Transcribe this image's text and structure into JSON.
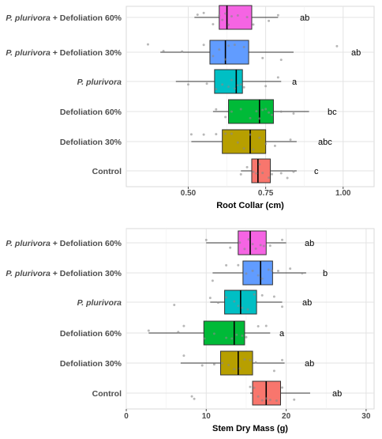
{
  "chart_data": [
    {
      "type": "boxplot",
      "orientation": "horizontal",
      "xlabel": "Root Collar (cm)",
      "xlim": [
        0.3,
        1.1
      ],
      "xticks": [
        0.5,
        0.75,
        1.0
      ],
      "xtick_labels": [
        "0.50",
        "0.75",
        "1.00"
      ],
      "grid": true,
      "legend": "none",
      "categories": [
        {
          "prefix": "P. plurivora",
          "suffix": " + Defoliation 60%",
          "color": "#F564E3",
          "min": 0.52,
          "q1": 0.6,
          "median": 0.625,
          "q3": 0.705,
          "max": 0.79,
          "letter": "ab",
          "points": [
            0.53,
            0.55,
            0.58,
            0.6,
            0.61,
            0.62,
            0.63,
            0.64,
            0.66,
            0.69,
            0.71,
            0.76,
            0.79
          ]
        },
        {
          "prefix": "P. plurivora",
          "suffix": " + Defoliation 30%",
          "color": "#619CFF",
          "min": 0.41,
          "q1": 0.57,
          "median": 0.62,
          "q3": 0.695,
          "max": 0.84,
          "letter": "ab",
          "points": [
            0.37,
            0.42,
            0.48,
            0.55,
            0.58,
            0.6,
            0.62,
            0.63,
            0.65,
            0.68,
            0.74,
            0.8,
            0.98
          ]
        },
        {
          "prefix": "P. plurivora",
          "suffix": "",
          "color": "#00BFC4",
          "min": 0.46,
          "q1": 0.585,
          "median": 0.655,
          "q3": 0.675,
          "max": 0.8,
          "letter": "a",
          "points": [
            0.5,
            0.56,
            0.59,
            0.61,
            0.63,
            0.64,
            0.65,
            0.66,
            0.67,
            0.68,
            0.75,
            0.79
          ]
        },
        {
          "prefix": "",
          "suffix": "Defoliation 60%",
          "color": "#00BA38",
          "min": 0.58,
          "q1": 0.63,
          "median": 0.73,
          "q3": 0.775,
          "max": 0.89,
          "letter": "bc",
          "points": [
            0.59,
            0.62,
            0.64,
            0.67,
            0.7,
            0.72,
            0.73,
            0.74,
            0.75,
            0.76,
            0.77,
            0.8,
            0.84
          ]
        },
        {
          "prefix": "",
          "suffix": "Defoliation 30%",
          "color": "#B79F00",
          "min": 0.51,
          "q1": 0.61,
          "median": 0.7,
          "q3": 0.75,
          "max": 0.85,
          "letter": "abc",
          "points": [
            0.51,
            0.55,
            0.59,
            0.62,
            0.64,
            0.66,
            0.68,
            0.7,
            0.71,
            0.73,
            0.75,
            0.78,
            0.83
          ]
        },
        {
          "prefix": "",
          "suffix": "Control",
          "color": "#F8766D",
          "min": 0.67,
          "q1": 0.705,
          "median": 0.725,
          "q3": 0.765,
          "max": 0.85,
          "letter": "c",
          "points": [
            0.67,
            0.69,
            0.71,
            0.72,
            0.73,
            0.74,
            0.76,
            0.77,
            0.8,
            0.82,
            0.84
          ]
        }
      ]
    },
    {
      "type": "boxplot",
      "orientation": "horizontal",
      "xlabel": "Stem Dry Mass (g)",
      "xlim": [
        0,
        31
      ],
      "xticks": [
        0,
        10,
        20,
        30
      ],
      "xtick_labels": [
        "0",
        "10",
        "20",
        "30"
      ],
      "grid": true,
      "legend": "none",
      "categories": [
        {
          "prefix": "P. plurivora",
          "suffix": " + Defoliation 60%",
          "color": "#F564E3",
          "min": 10.0,
          "q1": 14.0,
          "median": 15.5,
          "q3": 17.5,
          "max": 20.0,
          "letter": "ab",
          "points": [
            10.0,
            13.0,
            14.2,
            14.8,
            15.3,
            15.8,
            16.2,
            16.8,
            17.2,
            18.0,
            19.5
          ]
        },
        {
          "prefix": "P. plurivora",
          "suffix": " + Defoliation 30%",
          "color": "#619CFF",
          "min": 10.8,
          "q1": 14.6,
          "median": 16.8,
          "q3": 18.3,
          "max": 22.5,
          "letter": "b",
          "points": [
            10.8,
            12.5,
            14.0,
            15.0,
            15.8,
            16.5,
            17.0,
            17.8,
            18.2,
            19.0,
            20.5,
            22.0
          ]
        },
        {
          "prefix": "P. plurivora",
          "suffix": "",
          "color": "#00BFC4",
          "min": 10.5,
          "q1": 12.3,
          "median": 14.3,
          "q3": 16.3,
          "max": 19.5,
          "letter": "ab",
          "points": [
            6.0,
            10.5,
            11.5,
            12.5,
            13.5,
            14.0,
            14.5,
            15.2,
            16.0,
            17.0,
            18.5,
            19.5
          ]
        },
        {
          "prefix": "",
          "suffix": "Defoliation 60%",
          "color": "#00BA38",
          "min": 2.8,
          "q1": 9.7,
          "median": 13.5,
          "q3": 14.8,
          "max": 18.0,
          "letter": "a",
          "points": [
            2.8,
            6.5,
            7.2,
            9.8,
            11.0,
            12.5,
            13.2,
            13.8,
            14.5,
            15.0,
            16.5,
            17.5
          ]
        },
        {
          "prefix": "",
          "suffix": "Defoliation 30%",
          "color": "#B79F00",
          "min": 6.8,
          "q1": 11.8,
          "median": 14.0,
          "q3": 15.8,
          "max": 19.8,
          "letter": "ab",
          "points": [
            7.2,
            9.5,
            11.0,
            12.0,
            12.8,
            13.5,
            14.2,
            14.8,
            15.5,
            16.2,
            18.5,
            19.5
          ]
        },
        {
          "prefix": "",
          "suffix": "Control",
          "color": "#F8766D",
          "min": 15.5,
          "q1": 15.8,
          "median": 17.5,
          "q3": 19.3,
          "max": 23.0,
          "letter": "ab",
          "points": [
            8.2,
            8.5,
            15.5,
            16.0,
            16.5,
            17.0,
            17.5,
            18.0,
            18.8,
            19.5,
            21.0
          ]
        }
      ]
    }
  ]
}
